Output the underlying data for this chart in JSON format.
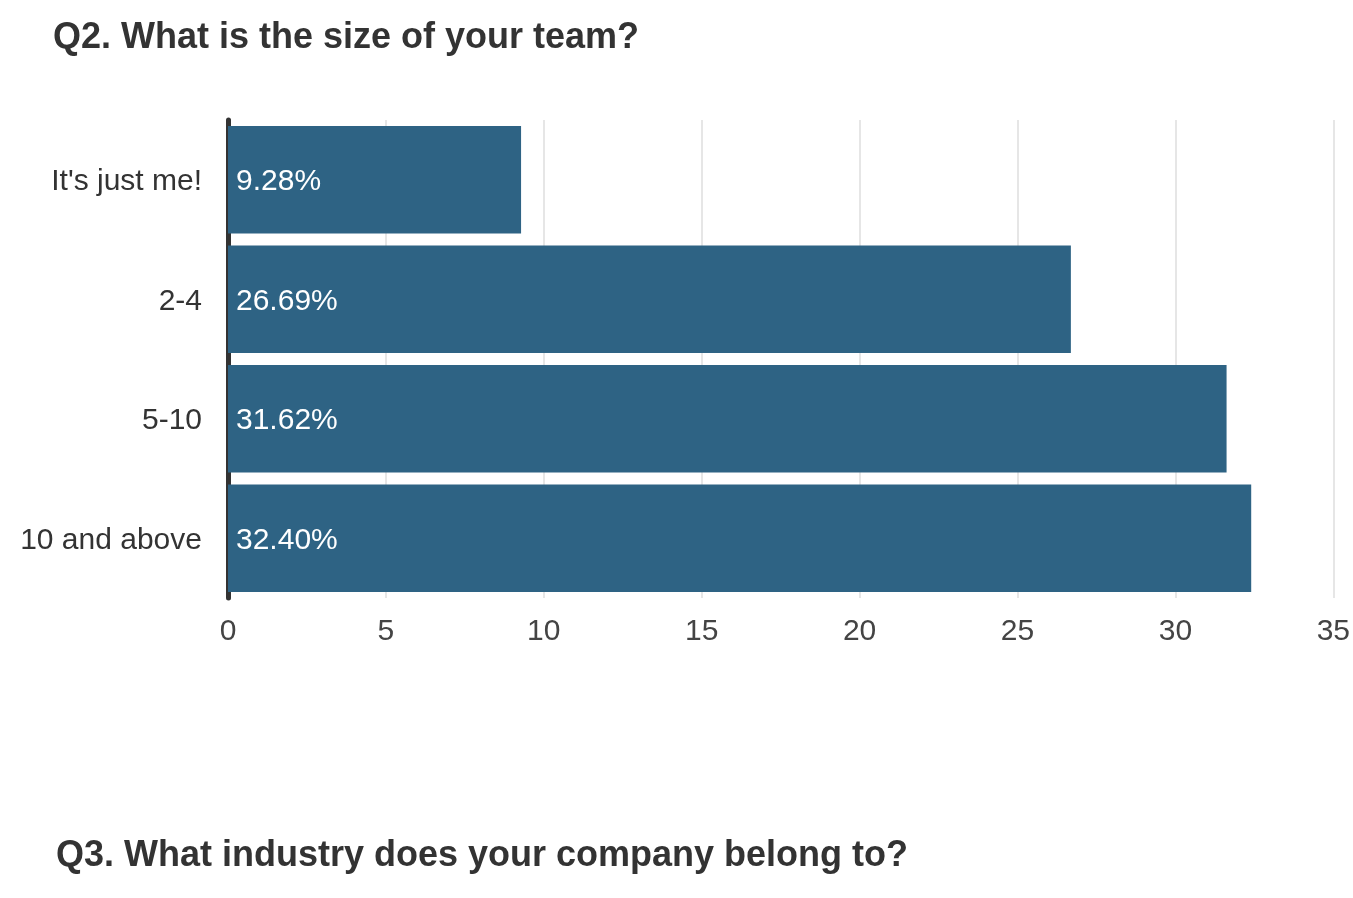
{
  "chart_data": {
    "type": "bar",
    "orientation": "horizontal",
    "title": "Q2. What is the size of your team?",
    "categories": [
      "It's just me!",
      "2-4",
      "5-10",
      "10 and above"
    ],
    "series": [
      {
        "color": "#2e6384",
        "values": [
          9.28,
          26.69,
          31.62,
          32.4
        ],
        "value_labels": [
          "9.28%",
          "26.69%",
          "31.62%",
          "32.40%"
        ]
      }
    ],
    "xlim": [
      0,
      35
    ],
    "xticks": [
      0,
      5,
      10,
      15,
      20,
      25,
      30,
      35
    ],
    "grid": "x",
    "annotations": [
      "Q3. What industry does your company belong to?"
    ]
  }
}
